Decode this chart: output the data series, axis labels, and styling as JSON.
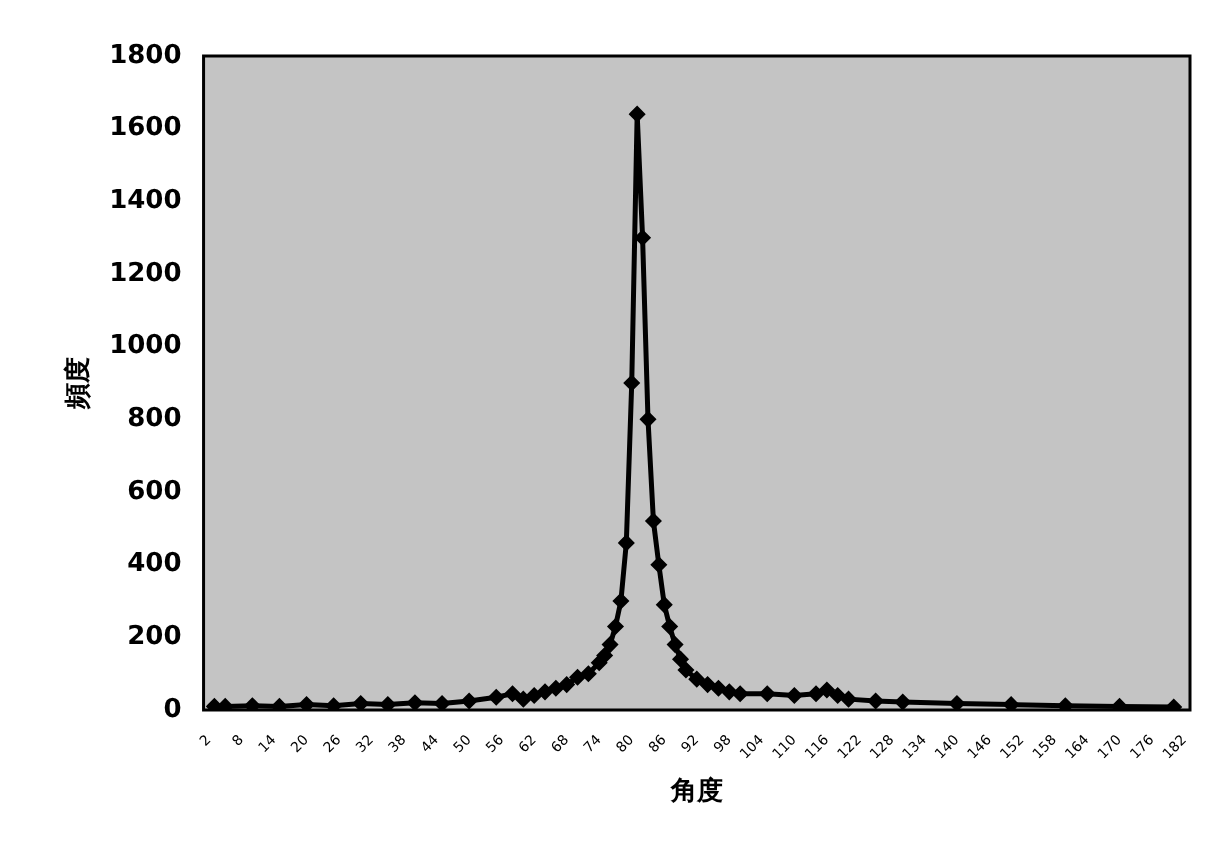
{
  "chart_data": {
    "type": "line",
    "xlabel": "角度",
    "ylabel": "頻度",
    "x": [
      3,
      5,
      10,
      15,
      20,
      25,
      30,
      35,
      40,
      45,
      50,
      55,
      58,
      60,
      62,
      64,
      66,
      68,
      70,
      72,
      74,
      75,
      76,
      77,
      78,
      79,
      80,
      81,
      82,
      83,
      84,
      85,
      86,
      87,
      88,
      89,
      90,
      92,
      94,
      96,
      98,
      100,
      105,
      110,
      114,
      116,
      118,
      120,
      125,
      130,
      140,
      150,
      160,
      170,
      180
    ],
    "series": [
      {
        "color": "#000000",
        "values": [
          10,
          10,
          12,
          10,
          15,
          12,
          18,
          15,
          20,
          18,
          25,
          35,
          45,
          30,
          40,
          50,
          60,
          70,
          90,
          100,
          130,
          150,
          180,
          230,
          300,
          460,
          900,
          1640,
          1300,
          800,
          520,
          400,
          290,
          230,
          180,
          140,
          110,
          85,
          70,
          60,
          50,
          45,
          45,
          40,
          45,
          55,
          40,
          30,
          25,
          22,
          18,
          15,
          12,
          10,
          8
        ]
      }
    ],
    "xlim": [
      1,
      183
    ],
    "xticks": [
      2,
      8,
      14,
      20,
      26,
      32,
      38,
      44,
      50,
      56,
      62,
      68,
      74,
      80,
      86,
      92,
      98,
      104,
      110,
      116,
      122,
      128,
      134,
      140,
      146,
      152,
      158,
      164,
      170,
      176,
      182
    ],
    "ylim": [
      0,
      1800
    ],
    "yticks": [
      0,
      200,
      400,
      600,
      800,
      1000,
      1200,
      1400,
      1600,
      1800
    ],
    "grid": false,
    "legend": false,
    "marker": "diamond",
    "line_style": "solid"
  }
}
